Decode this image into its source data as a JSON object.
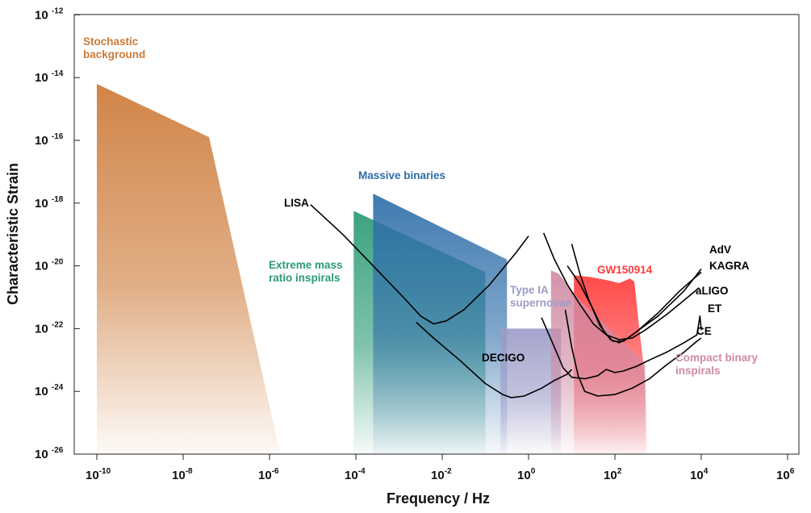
{
  "chart_data": {
    "type": "area",
    "title": "",
    "xlabel": "Frequency / Hz",
    "ylabel": "Characteristic Strain",
    "x_scale": "log10",
    "y_scale": "log10",
    "xlim_log10": [
      -10,
      6
    ],
    "ylim_log10": [
      -26,
      -12
    ],
    "x_ticks": [
      {
        "base": "10",
        "exp": "-10",
        "value": -10
      },
      {
        "base": "10",
        "exp": "-8",
        "value": -8
      },
      {
        "base": "10",
        "exp": "-6",
        "value": -6
      },
      {
        "base": "10",
        "exp": "-4",
        "value": -4
      },
      {
        "base": "10",
        "exp": "-2",
        "value": -2
      },
      {
        "base": "10",
        "exp": "0",
        "value": 0
      },
      {
        "base": "10",
        "exp": "2",
        "value": 2
      },
      {
        "base": "10",
        "exp": "4",
        "value": 4
      },
      {
        "base": "10",
        "exp": "6",
        "value": 6
      }
    ],
    "y_ticks": [
      {
        "base": "10",
        "exp": "-12",
        "value": -12
      },
      {
        "base": "10",
        "exp": "-14",
        "value": -14
      },
      {
        "base": "10",
        "exp": "-16",
        "value": -16
      },
      {
        "base": "10",
        "exp": "-18",
        "value": -18
      },
      {
        "base": "10",
        "exp": "-20",
        "value": -20
      },
      {
        "base": "10",
        "exp": "-22",
        "value": -22
      },
      {
        "base": "10",
        "exp": "-24",
        "value": -24
      },
      {
        "base": "10",
        "exp": "-26",
        "value": -26
      }
    ],
    "source_regions": [
      {
        "name": "Stochastic background",
        "label_lines": [
          "Stochastic",
          "background"
        ],
        "color": "#cd7a38",
        "polygon_log10": [
          [
            -10,
            -14.2
          ],
          [
            -7.4,
            -15.9
          ],
          [
            -5.75,
            -26
          ],
          [
            -10,
            -26
          ]
        ]
      },
      {
        "name": "Extreme mass ratio inspirals",
        "label_lines": [
          "Extreme mass",
          "ratio inspirals"
        ],
        "color": "#2a9a76",
        "polygon_log10": [
          [
            -4.05,
            -18.25
          ],
          [
            -1.0,
            -20.2
          ],
          [
            -1.0,
            -26
          ],
          [
            -4.05,
            -26
          ]
        ]
      },
      {
        "name": "Massive binaries",
        "label_lines": [
          "Massive binaries"
        ],
        "color": "#2f6ea9",
        "polygon_log10": [
          [
            -3.6,
            -17.7
          ],
          [
            -0.5,
            -19.8
          ],
          [
            -0.5,
            -26
          ],
          [
            -3.6,
            -26
          ]
        ]
      },
      {
        "name": "Type IA supernovae",
        "label_lines": [
          "Type IA",
          "supernovae"
        ],
        "color": "#9c9cc8",
        "polygon_log10": [
          [
            -0.65,
            -22.0
          ],
          [
            0.75,
            -22.0
          ],
          [
            0.75,
            -26
          ],
          [
            -0.65,
            -26
          ]
        ]
      },
      {
        "name": "GW150914",
        "label_lines": [
          "GW150914"
        ],
        "color": "#ff3b3b",
        "polygon_log10": [
          [
            1.05,
            -20.3
          ],
          [
            1.4,
            -20.35
          ],
          [
            1.8,
            -20.45
          ],
          [
            2.1,
            -20.55
          ],
          [
            2.35,
            -20.4
          ],
          [
            2.45,
            -20.5
          ],
          [
            2.55,
            -21.8
          ],
          [
            2.7,
            -23.6
          ],
          [
            2.75,
            -26
          ],
          [
            1.05,
            -26
          ]
        ]
      },
      {
        "name": "Compact binary inspirals",
        "label_lines": [
          "Compact binary",
          "inspirals"
        ],
        "color": "#cf8aa4",
        "polygon_log10": [
          [
            0.52,
            -20.15
          ],
          [
            0.7,
            -20.25
          ],
          [
            1.15,
            -21.05
          ],
          [
            2.7,
            -23.1
          ],
          [
            2.7,
            -26
          ],
          [
            0.52,
            -26
          ]
        ]
      }
    ],
    "detector_curves": [
      {
        "name": "LISA",
        "points_log10": [
          [
            -5.05,
            -18.05
          ],
          [
            -4.3,
            -19.0
          ],
          [
            -3.6,
            -20.0
          ],
          [
            -2.9,
            -21.0
          ],
          [
            -2.5,
            -21.6
          ],
          [
            -2.2,
            -21.85
          ],
          [
            -1.9,
            -21.75
          ],
          [
            -1.5,
            -21.4
          ],
          [
            -0.9,
            -20.6
          ],
          [
            -0.3,
            -19.6
          ],
          [
            0.0,
            -19.05
          ]
        ]
      },
      {
        "name": "DECIGO",
        "points_log10": [
          [
            -2.6,
            -21.8
          ],
          [
            -2.2,
            -22.3
          ],
          [
            -1.6,
            -23.0
          ],
          [
            -1.0,
            -23.75
          ],
          [
            -0.6,
            -24.1
          ],
          [
            -0.4,
            -24.2
          ],
          [
            -0.1,
            -24.15
          ],
          [
            0.3,
            -23.9
          ],
          [
            0.6,
            -23.65
          ],
          [
            0.9,
            -23.45
          ],
          [
            1.0,
            -23.3
          ]
        ]
      },
      {
        "name": "AdV",
        "points_log10": [
          [
            1.0,
            -19.3
          ],
          [
            1.2,
            -20.3
          ],
          [
            1.4,
            -21.1
          ],
          [
            1.65,
            -21.9
          ],
          [
            1.9,
            -22.35
          ],
          [
            2.1,
            -22.45
          ],
          [
            2.3,
            -22.3
          ],
          [
            2.6,
            -22.0
          ],
          [
            3.0,
            -21.6
          ],
          [
            3.6,
            -20.8
          ],
          [
            4.0,
            -20.1
          ]
        ]
      },
      {
        "name": "KAGRA",
        "points_log10": [
          [
            0.9,
            -20.0
          ],
          [
            1.2,
            -20.6
          ],
          [
            1.5,
            -21.4
          ],
          [
            1.75,
            -22.1
          ],
          [
            1.95,
            -22.4
          ],
          [
            2.2,
            -22.4
          ],
          [
            2.5,
            -22.1
          ],
          [
            3.0,
            -21.5
          ],
          [
            3.5,
            -20.8
          ],
          [
            4.0,
            -20.2
          ]
        ]
      },
      {
        "name": "aLIGO",
        "points_log10": [
          [
            0.35,
            -18.95
          ],
          [
            0.6,
            -19.8
          ],
          [
            0.9,
            -20.6
          ],
          [
            1.2,
            -21.25
          ],
          [
            1.5,
            -21.85
          ],
          [
            1.8,
            -22.2
          ],
          [
            2.1,
            -22.35
          ],
          [
            2.4,
            -22.3
          ],
          [
            2.7,
            -22.05
          ],
          [
            3.2,
            -21.55
          ],
          [
            3.6,
            -21.1
          ],
          [
            3.95,
            -20.7
          ]
        ]
      },
      {
        "name": "ET",
        "points_log10": [
          [
            0.3,
            -21.65
          ],
          [
            0.6,
            -22.6
          ],
          [
            0.8,
            -23.25
          ],
          [
            1.0,
            -23.55
          ],
          [
            1.3,
            -23.6
          ],
          [
            1.6,
            -23.5
          ],
          [
            1.8,
            -23.3
          ],
          [
            2.0,
            -23.4
          ],
          [
            2.2,
            -23.35
          ],
          [
            2.5,
            -23.2
          ],
          [
            2.8,
            -23.0
          ],
          [
            3.2,
            -22.75
          ],
          [
            3.6,
            -22.45
          ],
          [
            3.9,
            -22.2
          ],
          [
            3.97,
            -21.6
          ],
          [
            4.0,
            -22.05
          ]
        ]
      },
      {
        "name": "CE",
        "points_log10": [
          [
            0.85,
            -21.4
          ],
          [
            1.0,
            -22.6
          ],
          [
            1.15,
            -23.5
          ],
          [
            1.3,
            -24.0
          ],
          [
            1.6,
            -24.15
          ],
          [
            2.0,
            -24.1
          ],
          [
            2.4,
            -23.9
          ],
          [
            2.8,
            -23.6
          ],
          [
            3.2,
            -23.15
          ],
          [
            3.6,
            -22.75
          ],
          [
            3.9,
            -22.4
          ],
          [
            4.0,
            -22.3
          ]
        ]
      }
    ],
    "curve_labels": [
      "LISA",
      "DECIGO",
      "AdV",
      "KAGRA",
      "aLIGO",
      "ET",
      "CE"
    ]
  }
}
